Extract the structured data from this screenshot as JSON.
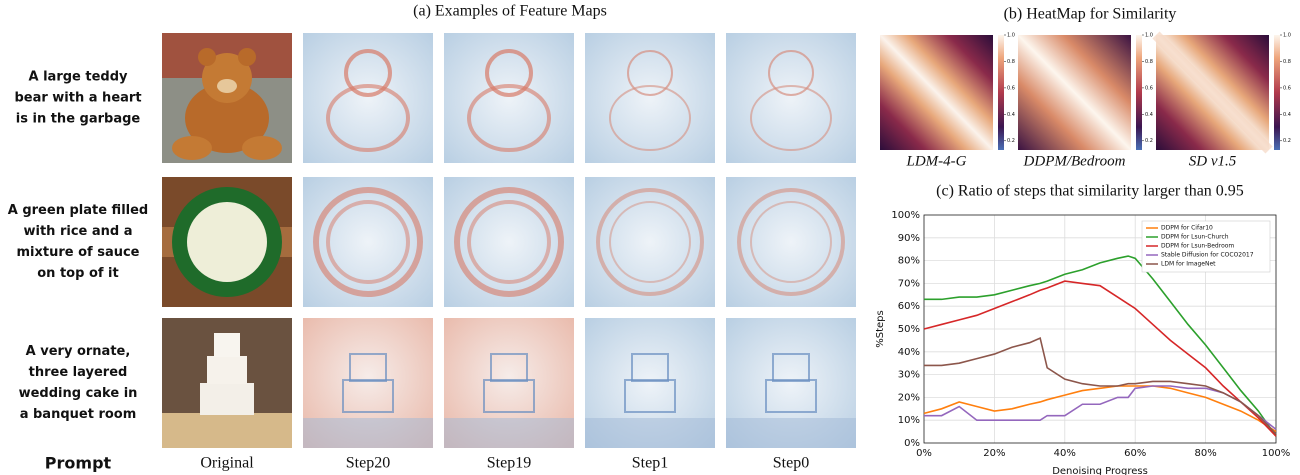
{
  "panel_a": {
    "title": "(a) Examples of Feature Maps",
    "prompt_header": "Prompt",
    "columns": [
      "Original",
      "Step20",
      "Step19",
      "Step1",
      "Step0"
    ],
    "prompts": [
      [
        "A large teddy",
        "bear with a heart",
        "is in the garbage"
      ],
      [
        "A green plate filled",
        "with rice and a",
        "mixture of sauce",
        "on top of it"
      ],
      [
        "A very ornate,",
        "three layered",
        "wedding cake in",
        "a banquet room"
      ]
    ]
  },
  "panel_b": {
    "title": "(b) HeatMap for Similarity",
    "labels": [
      "LDM-4-G",
      "DDPM/Bedroom",
      "SD v1.5"
    ],
    "colorbar_lim": [
      0.13,
      1.0
    ],
    "colorbar_ticks": [
      0.2,
      0.4,
      0.6,
      0.8,
      {
        "value": 1.0,
        "label": "1.0"
      }
    ]
  },
  "chart_data": {
    "type": "line",
    "title": "(c) Ratio of steps that similarity larger than 0.95",
    "xlabel": "Denoising Progress",
    "ylabel": "%Steps",
    "x": [
      0,
      5,
      10,
      15,
      20,
      25,
      30,
      33,
      35,
      40,
      45,
      50,
      55,
      58,
      60,
      65,
      70,
      75,
      80,
      85,
      90,
      95,
      100
    ],
    "series": [
      {
        "name": "DDPM for Cifar10",
        "color": "#ff7f0e",
        "values": [
          13,
          15,
          18,
          16,
          14,
          15,
          17,
          18,
          19,
          21,
          23,
          24,
          25,
          25,
          25,
          25,
          24,
          22,
          20,
          17,
          14,
          10,
          5
        ]
      },
      {
        "name": "DDPM for Lsun-Church",
        "color": "#2ca02c",
        "values": [
          63,
          63,
          64,
          64,
          65,
          67,
          69,
          70,
          71,
          74,
          76,
          79,
          81,
          82,
          81,
          72,
          62,
          52,
          43,
          33,
          23,
          14,
          3
        ]
      },
      {
        "name": "DDPM for Lsun-Bedroom",
        "color": "#d62728",
        "values": [
          50,
          52,
          54,
          56,
          59,
          62,
          65,
          67,
          68,
          71,
          70,
          69,
          64,
          61,
          59,
          52,
          45,
          39,
          33,
          25,
          18,
          11,
          3
        ]
      },
      {
        "name": "Stable Diffusion for COCO2017",
        "color": "#9467bd",
        "values": [
          12,
          12,
          16,
          10,
          10,
          10,
          10,
          10,
          12,
          12,
          17,
          17,
          20,
          20,
          24,
          25,
          25,
          24,
          24,
          22,
          18,
          12,
          6
        ]
      },
      {
        "name": "LDM for ImageNet",
        "color": "#8c564b",
        "values": [
          34,
          34,
          35,
          37,
          39,
          42,
          44,
          46,
          33,
          28,
          26,
          25,
          25,
          26,
          26,
          27,
          27,
          26,
          25,
          22,
          18,
          12,
          4
        ]
      }
    ],
    "xlim": [
      0,
      100
    ],
    "ylim": [
      0,
      100
    ],
    "xticks": [
      {
        "value": 0,
        "label": "0%"
      },
      {
        "value": 20,
        "label": "20%"
      },
      {
        "value": 40,
        "label": "40%"
      },
      {
        "value": 60,
        "label": "60%"
      },
      {
        "value": 80,
        "label": "80%"
      },
      {
        "value": 100,
        "label": "100%"
      }
    ],
    "yticks": [
      {
        "value": 0,
        "label": "0%"
      },
      {
        "value": 10,
        "label": "10%"
      },
      {
        "value": 20,
        "label": "20%"
      },
      {
        "value": 30,
        "label": "30%"
      },
      {
        "value": 40,
        "label": "40%"
      },
      {
        "value": 50,
        "label": "50%"
      },
      {
        "value": 60,
        "label": "60%"
      },
      {
        "value": 70,
        "label": "70%"
      },
      {
        "value": 80,
        "label": "80%"
      },
      {
        "value": 90,
        "label": "90%"
      },
      {
        "value": 100,
        "label": "100%"
      }
    ],
    "grid": true,
    "legend": "upper right"
  }
}
